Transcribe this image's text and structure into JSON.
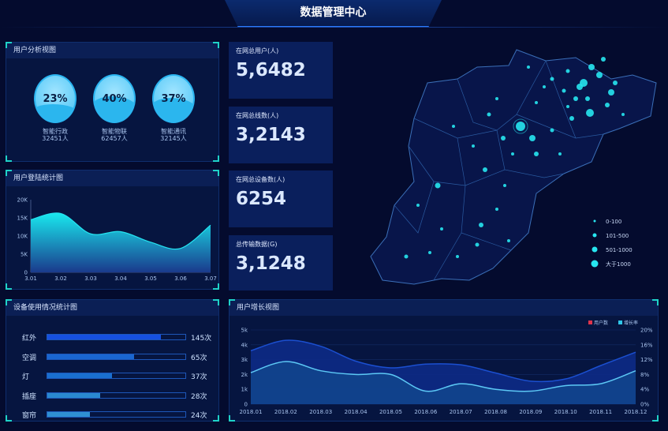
{
  "title": "数据管理中心",
  "user_analysis": {
    "title": "用户分析视图",
    "items": [
      {
        "pct": "23%",
        "name": "智能行政",
        "count": "32451人",
        "fill": 0.23
      },
      {
        "pct": "40%",
        "name": "智能物联",
        "count": "62457人",
        "fill": 0.4
      },
      {
        "pct": "37%",
        "name": "智能通讯",
        "count": "32145人",
        "fill": 0.37
      }
    ]
  },
  "stats": [
    {
      "label": "在网总用户(人)",
      "value": "5,6482"
    },
    {
      "label": "在网总线数(人)",
      "value": "3,2143"
    },
    {
      "label": "在网总设备数(人)",
      "value": "6254"
    },
    {
      "label": "总传输数据(G)",
      "value": "3,1248"
    }
  ],
  "map": {
    "legend": [
      {
        "label": "0-100"
      },
      {
        "label": "101-500"
      },
      {
        "label": "501-1000"
      },
      {
        "label": "大于1000"
      }
    ],
    "dot_color": "#27e6f0"
  },
  "chart_data": [
    {
      "type": "area",
      "title": "用户登陆统计图",
      "categories": [
        "3.01",
        "3.02",
        "3.03",
        "3.04",
        "3.05",
        "3.06",
        "3.07"
      ],
      "values": [
        14.5,
        16.2,
        10.6,
        11.2,
        8.3,
        6.6,
        13
      ],
      "unit": "K",
      "yticks": [
        "0",
        "5K",
        "10K",
        "15K",
        "20K"
      ],
      "ylim": [
        0,
        20
      ]
    },
    {
      "type": "bar",
      "title": "设备使用情况统计图",
      "categories": [
        "红外",
        "空调",
        "灯",
        "插座",
        "窗帘"
      ],
      "values": [
        145,
        65,
        37,
        28,
        24
      ],
      "labels": [
        "145次",
        "65次",
        "37次",
        "28次",
        "24次"
      ],
      "fill": [
        0.82,
        0.63,
        0.47,
        0.38,
        0.31
      ],
      "colors": [
        "#1650e0",
        "#1a66d0",
        "#1a6fcf",
        "#2a88d0",
        "#2f8fd2"
      ]
    },
    {
      "type": "area",
      "title": "用户增长视图",
      "categories": [
        "2018.01",
        "2018.02",
        "2018.03",
        "2018.04",
        "2018.05",
        "2018.06",
        "2018.07",
        "2018.08",
        "2018.09",
        "2018.10",
        "2018.11",
        "2018.12"
      ],
      "series": [
        {
          "name": "用户数",
          "axis": "left",
          "values": [
            3.6,
            4.3,
            3.9,
            2.9,
            2.45,
            2.7,
            2.65,
            2.1,
            1.55,
            1.7,
            2.6,
            3.5
          ],
          "color": "#1b4fd0"
        },
        {
          "name": "增长率",
          "axis": "right",
          "values": [
            8.5,
            11.5,
            9,
            8,
            8,
            3.5,
            5.5,
            4,
            3.5,
            5,
            5.5,
            9
          ],
          "color": "#5cc8f5"
        }
      ],
      "legend_colors": [
        "#e0344b",
        "#2fc6e8"
      ],
      "yticks_left": [
        "0",
        "1k",
        "2k",
        "3k",
        "4k",
        "5k"
      ],
      "yticks_right": [
        "0%",
        "4%",
        "8%",
        "12%",
        "16%",
        "20%"
      ],
      "ylim_left": [
        0,
        5
      ],
      "ylim_right": [
        0,
        20
      ],
      "legend": "top-right"
    }
  ]
}
